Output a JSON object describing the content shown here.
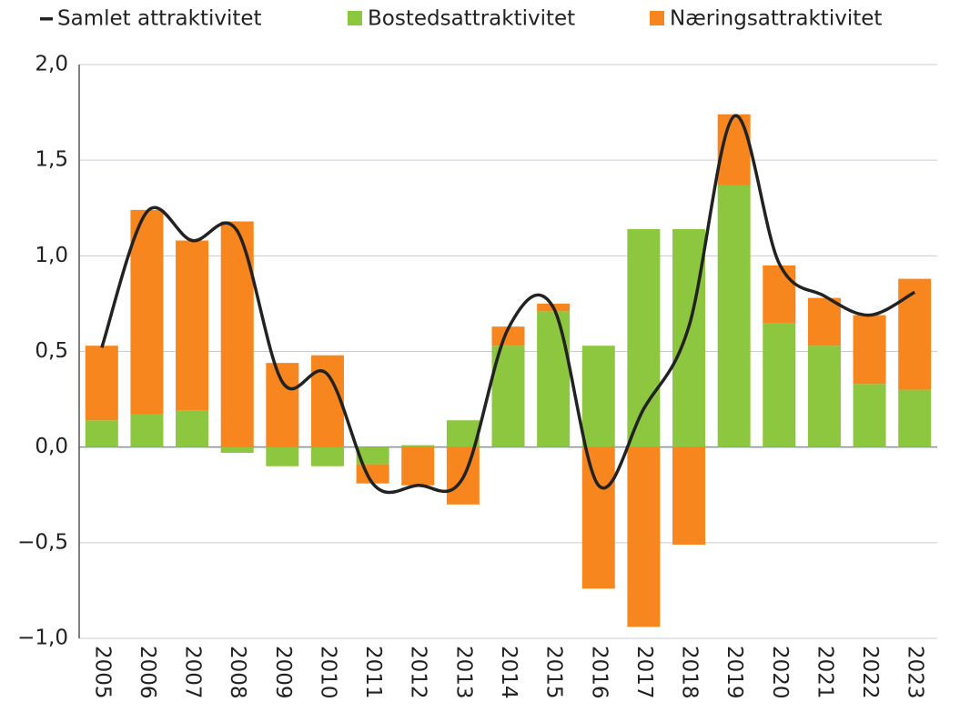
{
  "chart_data": {
    "type": "bar",
    "stacked": true,
    "categories": [
      "2005",
      "2006",
      "2007",
      "2008",
      "2009",
      "2010",
      "2011",
      "2012",
      "2013",
      "2014",
      "2015",
      "2016",
      "2017",
      "2018",
      "2019",
      "2020",
      "2021",
      "2022",
      "2023"
    ],
    "series": [
      {
        "name": "Samlet attraktivitet",
        "type": "line",
        "color": "#222222",
        "values": [
          0.52,
          1.23,
          1.08,
          1.13,
          0.34,
          0.38,
          -0.19,
          -0.2,
          -0.16,
          0.62,
          0.73,
          -0.2,
          0.2,
          0.63,
          1.73,
          0.96,
          0.79,
          0.69,
          0.81
        ]
      },
      {
        "name": "Bostedsattraktivitet",
        "type": "bar",
        "color": "#8dc63f",
        "values": [
          0.14,
          0.17,
          0.19,
          -0.03,
          -0.1,
          -0.1,
          -0.09,
          0.01,
          0.14,
          0.53,
          0.71,
          0.53,
          1.14,
          1.14,
          1.37,
          0.65,
          0.53,
          0.33,
          0.3
        ]
      },
      {
        "name": "Næringsattraktivitet",
        "type": "bar",
        "color": "#f7861e",
        "values": [
          0.39,
          1.07,
          0.89,
          1.18,
          0.44,
          0.48,
          -0.1,
          -0.2,
          -0.3,
          0.1,
          0.04,
          -0.74,
          -0.94,
          -0.51,
          0.37,
          0.3,
          0.25,
          0.36,
          0.58
        ]
      }
    ],
    "ylim": [
      -1,
      2
    ],
    "yticks": [
      {
        "value": -1,
        "label": "−1,0"
      },
      {
        "value": -0.5,
        "label": "−0,5"
      },
      {
        "value": 0,
        "label": "0,0"
      },
      {
        "value": 0.5,
        "label": "0,5"
      },
      {
        "value": 1,
        "label": "1,0"
      },
      {
        "value": 1.5,
        "label": "1,5"
      },
      {
        "value": 2,
        "label": "2,0"
      }
    ],
    "grid": true,
    "legend": "top"
  }
}
